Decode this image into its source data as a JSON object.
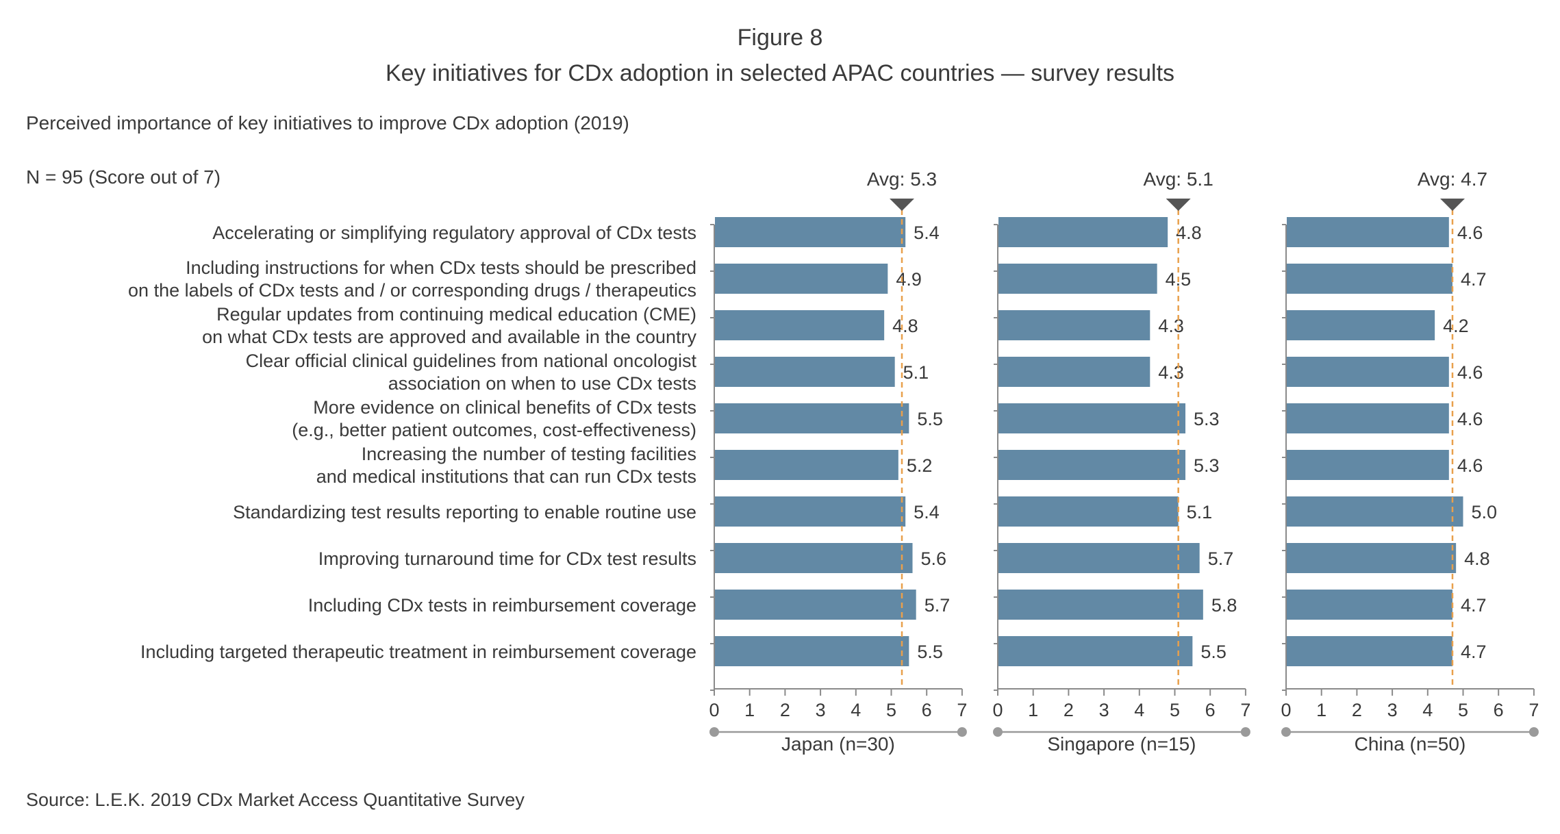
{
  "figure_number": "Figure 8",
  "figure_title": "Key initiatives for CDx adoption in selected APAC countries — survey results",
  "subtitle": "Perceived importance of key initiatives to improve CDx adoption (2019)",
  "sample_note": "N = 95 (Score out of 7)",
  "source": "Source: L.E.K. 2019 CDx Market Access Quantitative Survey",
  "colors": {
    "bar": "#6289a5",
    "average_line": "#e8a04c",
    "axis": "#8a8a8a",
    "marker": "#555555",
    "text": "#3a3a3a"
  },
  "chart_data": {
    "type": "bar",
    "orientation": "horizontal",
    "categories": [
      [
        "Accelerating or simplifying regulatory approval of CDx tests"
      ],
      [
        "Including instructions for when CDx tests should be prescribed",
        "on the labels of CDx tests and / or corresponding drugs / therapeutics"
      ],
      [
        "Regular updates from continuing medical education (CME)",
        "on what CDx tests are approved and available in the country"
      ],
      [
        "Clear official clinical guidelines from national oncologist",
        "association on when to use CDx tests"
      ],
      [
        "More evidence on clinical benefits of CDx tests",
        "(e.g., better patient outcomes, cost-effectiveness)"
      ],
      [
        "Increasing the number of testing facilities",
        "and medical institutions that can run CDx tests"
      ],
      [
        "Standardizing test results reporting to enable routine use"
      ],
      [
        "Improving turnaround time for CDx test results"
      ],
      [
        "Including CDx tests in reimbursement coverage"
      ],
      [
        "Including targeted therapeutic treatment in reimbursement coverage"
      ]
    ],
    "xlim": [
      0,
      7
    ],
    "xticks": [
      "0",
      "1",
      "2",
      "3",
      "4",
      "5",
      "6",
      "7"
    ],
    "panels": [
      {
        "name": "Japan (n=30)",
        "average": 5.3,
        "average_label": "Avg: 5.3",
        "values": [
          5.4,
          4.9,
          4.8,
          5.1,
          5.5,
          5.2,
          5.4,
          5.6,
          5.7,
          5.5
        ],
        "value_labels": [
          "5.4",
          "4.9",
          "4.8",
          "5.1",
          "5.5",
          "5.2",
          "5.4",
          "5.6",
          "5.7",
          "5.5"
        ]
      },
      {
        "name": "Singapore (n=15)",
        "average": 5.1,
        "average_label": "Avg: 5.1",
        "values": [
          4.8,
          4.5,
          4.3,
          4.3,
          5.3,
          5.3,
          5.1,
          5.7,
          5.8,
          5.5
        ],
        "value_labels": [
          "4.8",
          "4.5",
          "4.3",
          "4.3",
          "5.3",
          "5.3",
          "5.1",
          "5.7",
          "5.8",
          "5.5"
        ]
      },
      {
        "name": "China (n=50)",
        "average": 4.7,
        "average_label": "Avg: 4.7",
        "values": [
          4.6,
          4.7,
          4.2,
          4.6,
          4.6,
          4.6,
          5.0,
          4.8,
          4.7,
          4.7
        ],
        "value_labels": [
          "4.6",
          "4.7",
          "4.2",
          "4.6",
          "4.6",
          "4.6",
          "5.0",
          "4.8",
          "4.7",
          "4.7"
        ]
      }
    ]
  }
}
